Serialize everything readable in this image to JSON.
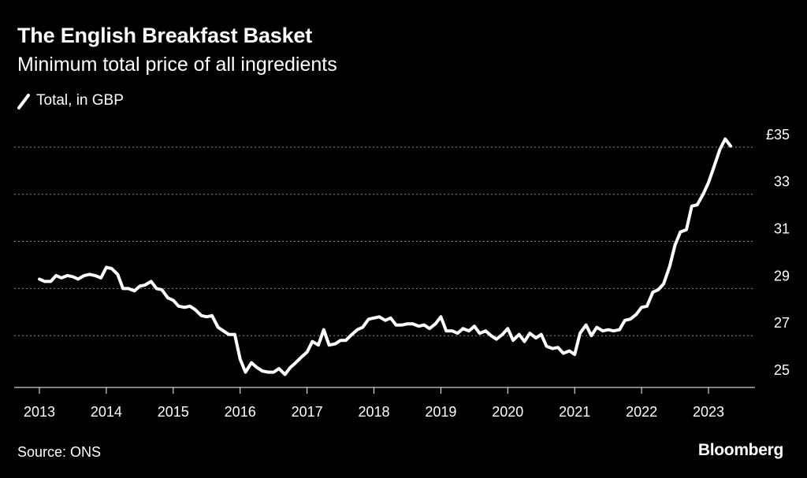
{
  "chart_data": {
    "type": "line",
    "title": "The English Breakfast Basket",
    "subtitle": "Minimum total price of all ingredients",
    "legend_label": "Total, in GBP",
    "source": "Source: ONS",
    "brand": "Bloomberg",
    "x_ticks": [
      2013,
      2014,
      2015,
      2016,
      2017,
      2018,
      2019,
      2020,
      2021,
      2022,
      2023
    ],
    "x_tick_labels": [
      "2013",
      "2014",
      "2015",
      "2016",
      "2017",
      "2018",
      "2019",
      "2020",
      "2021",
      "2022",
      "2023"
    ],
    "y_ticks": [
      25,
      27,
      29,
      31,
      33,
      35
    ],
    "y_tick_labels": [
      "25",
      "27",
      "29",
      "31",
      "33",
      "£35"
    ],
    "xlim": [
      2012.92,
      2023.8
    ],
    "ylim": [
      24.8,
      35.9
    ],
    "line_color": "#ffffff",
    "grid_color": "#8a8a8a",
    "series": [
      {
        "name": "Total, in GBP",
        "x": [
          2013.0,
          2013.08,
          2013.17,
          2013.25,
          2013.33,
          2013.42,
          2013.5,
          2013.58,
          2013.67,
          2013.75,
          2013.83,
          2013.92,
          2014.0,
          2014.08,
          2014.17,
          2014.25,
          2014.33,
          2014.42,
          2014.5,
          2014.58,
          2014.67,
          2014.75,
          2014.83,
          2014.92,
          2015.0,
          2015.08,
          2015.17,
          2015.25,
          2015.33,
          2015.42,
          2015.5,
          2015.58,
          2015.67,
          2015.75,
          2015.83,
          2015.92,
          2016.0,
          2016.08,
          2016.17,
          2016.25,
          2016.33,
          2016.42,
          2016.5,
          2016.58,
          2016.67,
          2016.75,
          2016.83,
          2016.92,
          2017.0,
          2017.08,
          2017.17,
          2017.25,
          2017.33,
          2017.42,
          2017.5,
          2017.58,
          2017.67,
          2017.75,
          2017.83,
          2017.92,
          2018.0,
          2018.08,
          2018.17,
          2018.25,
          2018.33,
          2018.42,
          2018.5,
          2018.58,
          2018.67,
          2018.75,
          2018.83,
          2018.92,
          2019.0,
          2019.08,
          2019.17,
          2019.25,
          2019.33,
          2019.42,
          2019.5,
          2019.58,
          2019.67,
          2019.75,
          2019.83,
          2019.92,
          2020.0,
          2020.08,
          2020.17,
          2020.25,
          2020.33,
          2020.42,
          2020.5,
          2020.58,
          2020.67,
          2020.75,
          2020.83,
          2020.92,
          2021.0,
          2021.08,
          2021.17,
          2021.25,
          2021.33,
          2021.42,
          2021.5,
          2021.58,
          2021.67,
          2021.75,
          2021.83,
          2021.92,
          2022.0,
          2022.08,
          2022.17,
          2022.25,
          2022.33,
          2022.42,
          2022.5,
          2022.58,
          2022.67,
          2022.75,
          2022.83,
          2022.92,
          2023.0,
          2023.08,
          2023.17,
          2023.25,
          2023.33
        ],
        "values": [
          29.4,
          29.3,
          29.3,
          29.55,
          29.45,
          29.55,
          29.5,
          29.4,
          29.55,
          29.6,
          29.55,
          29.45,
          29.9,
          29.85,
          29.6,
          29.0,
          29.0,
          28.9,
          29.1,
          29.15,
          29.3,
          29.0,
          28.95,
          28.6,
          28.5,
          28.25,
          28.2,
          28.25,
          28.1,
          27.85,
          27.8,
          27.85,
          27.35,
          27.2,
          27.05,
          27.05,
          26.0,
          25.45,
          25.85,
          25.65,
          25.5,
          25.45,
          25.45,
          25.6,
          25.35,
          25.65,
          25.85,
          26.1,
          26.3,
          26.75,
          26.6,
          27.25,
          26.6,
          26.65,
          26.8,
          26.8,
          27.05,
          27.25,
          27.35,
          27.7,
          27.75,
          27.8,
          27.65,
          27.75,
          27.45,
          27.45,
          27.5,
          27.5,
          27.4,
          27.45,
          27.3,
          27.5,
          27.8,
          27.2,
          27.2,
          27.1,
          27.3,
          27.2,
          27.4,
          27.1,
          27.2,
          27.0,
          26.85,
          27.05,
          27.3,
          26.8,
          27.05,
          26.75,
          27.1,
          26.9,
          27.05,
          26.55,
          26.45,
          26.5,
          26.25,
          26.35,
          26.2,
          27.1,
          27.45,
          27.0,
          27.35,
          27.2,
          27.25,
          27.2,
          27.25,
          27.65,
          27.7,
          27.9,
          28.2,
          28.25,
          28.85,
          28.95,
          29.2,
          29.95,
          30.85,
          31.4,
          31.5,
          32.5,
          32.55,
          33.0,
          33.5,
          34.15,
          34.9,
          35.35,
          35.05
        ]
      }
    ]
  }
}
